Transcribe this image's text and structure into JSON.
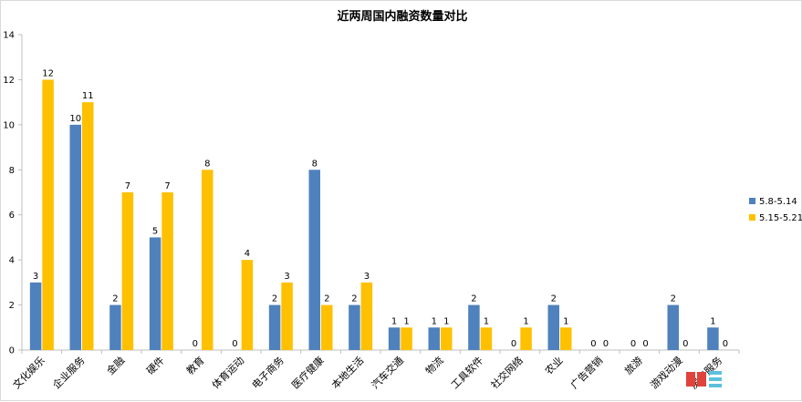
{
  "chart_data": {
    "type": "bar",
    "title": "近两周国内融资数量对比",
    "categories": [
      "文化娱乐",
      "企业服务",
      "金融",
      "硬件",
      "教育",
      "体育运动",
      "电子商务",
      "医疗健康",
      "本地生活",
      "汽车交通",
      "物流",
      "工具软件",
      "社交网络",
      "农业",
      "广告营销",
      "旅游",
      "游戏动漫",
      "房产服务"
    ],
    "series": [
      {
        "name": "5.8-5.14",
        "color": "#4f81bd",
        "values": [
          3,
          10,
          2,
          5,
          0,
          0,
          2,
          8,
          2,
          1,
          1,
          2,
          0,
          2,
          0,
          0,
          2,
          1
        ]
      },
      {
        "name": "5.15-5.21",
        "color": "#ffc000",
        "values": [
          12,
          11,
          7,
          7,
          8,
          4,
          3,
          2,
          3,
          1,
          1,
          1,
          1,
          1,
          0,
          0,
          0,
          0
        ]
      }
    ],
    "y_ticks": [
      "0",
      "2",
      "4",
      "6",
      "8",
      "10",
      "12",
      "14"
    ],
    "ylim": [
      0,
      14
    ],
    "grid": false,
    "legend": "right",
    "axis_color": "#bfbfbf"
  }
}
